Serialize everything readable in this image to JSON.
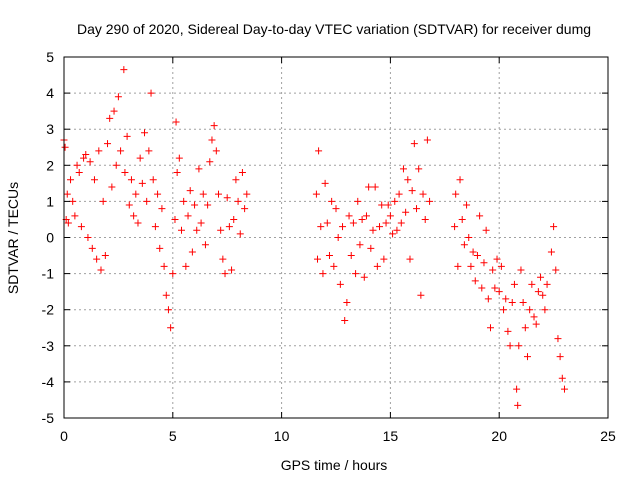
{
  "chart_data": {
    "type": "scatter",
    "title": "Day 290 of 2020, Sidereal Day-to-day VTEC variation (SDTVAR) for receiver dumg",
    "xlabel": "GPS time / hours",
    "ylabel": "SDTVAR / TECUs",
    "xlim": [
      0,
      25
    ],
    "ylim": [
      -5,
      5
    ],
    "xticks": [
      "0",
      "5",
      "10",
      "15",
      "20",
      "25"
    ],
    "yticks": [
      "-5",
      "-4",
      "-3",
      "-2",
      "-1",
      "0",
      "1",
      "2",
      "3",
      "4",
      "5"
    ],
    "grid": true,
    "marker": "+",
    "color": "#ff0000",
    "series": [
      {
        "name": "SDTVAR",
        "sample_note": "representative trace points (full data is dense)",
        "points": [
          [
            0.0,
            2.7
          ],
          [
            0.05,
            2.5
          ],
          [
            0.1,
            0.5
          ],
          [
            0.15,
            1.2
          ],
          [
            0.2,
            0.4
          ],
          [
            0.3,
            1.6
          ],
          [
            0.4,
            1.0
          ],
          [
            0.5,
            0.6
          ],
          [
            0.6,
            2.0
          ],
          [
            0.7,
            1.8
          ],
          [
            0.8,
            0.3
          ],
          [
            0.9,
            2.2
          ],
          [
            1.0,
            2.3
          ],
          [
            1.1,
            0.0
          ],
          [
            1.2,
            2.1
          ],
          [
            1.3,
            -0.3
          ],
          [
            1.4,
            1.6
          ],
          [
            1.5,
            -0.6
          ],
          [
            1.6,
            2.4
          ],
          [
            1.7,
            -0.9
          ],
          [
            1.8,
            1.0
          ],
          [
            1.9,
            -0.5
          ],
          [
            2.0,
            2.6
          ],
          [
            2.1,
            3.3
          ],
          [
            2.2,
            1.4
          ],
          [
            2.3,
            3.5
          ],
          [
            2.4,
            2.0
          ],
          [
            2.5,
            3.9
          ],
          [
            2.6,
            2.4
          ],
          [
            2.75,
            4.65
          ],
          [
            2.8,
            1.8
          ],
          [
            2.9,
            2.8
          ],
          [
            3.0,
            0.9
          ],
          [
            3.1,
            1.6
          ],
          [
            3.2,
            0.6
          ],
          [
            3.3,
            1.2
          ],
          [
            3.4,
            0.4
          ],
          [
            3.5,
            2.2
          ],
          [
            3.6,
            1.5
          ],
          [
            3.7,
            2.9
          ],
          [
            3.8,
            1.0
          ],
          [
            3.9,
            2.4
          ],
          [
            4.0,
            4.0
          ],
          [
            4.1,
            1.6
          ],
          [
            4.2,
            0.3
          ],
          [
            4.3,
            1.2
          ],
          [
            4.4,
            -0.3
          ],
          [
            4.5,
            0.8
          ],
          [
            4.6,
            -0.8
          ],
          [
            4.7,
            -1.6
          ],
          [
            4.8,
            -2.0
          ],
          [
            4.9,
            -2.5
          ],
          [
            5.0,
            -1.0
          ],
          [
            5.1,
            0.5
          ],
          [
            5.15,
            3.2
          ],
          [
            5.2,
            1.8
          ],
          [
            5.3,
            2.2
          ],
          [
            5.4,
            0.2
          ],
          [
            5.5,
            1.0
          ],
          [
            5.6,
            -0.8
          ],
          [
            5.7,
            0.6
          ],
          [
            5.8,
            1.3
          ],
          [
            5.9,
            -0.4
          ],
          [
            6.0,
            0.9
          ],
          [
            6.1,
            0.2
          ],
          [
            6.2,
            1.9
          ],
          [
            6.3,
            0.4
          ],
          [
            6.4,
            1.2
          ],
          [
            6.5,
            -0.2
          ],
          [
            6.6,
            0.9
          ],
          [
            6.7,
            2.1
          ],
          [
            6.8,
            2.7
          ],
          [
            6.9,
            3.1
          ],
          [
            7.0,
            2.4
          ],
          [
            7.1,
            1.2
          ],
          [
            7.2,
            0.2
          ],
          [
            7.3,
            -0.6
          ],
          [
            7.4,
            -1.0
          ],
          [
            7.5,
            1.1
          ],
          [
            7.6,
            0.3
          ],
          [
            7.7,
            -0.9
          ],
          [
            7.8,
            0.5
          ],
          [
            7.9,
            1.6
          ],
          [
            8.0,
            1.0
          ],
          [
            8.1,
            0.1
          ],
          [
            8.2,
            1.8
          ],
          [
            8.3,
            0.8
          ],
          [
            8.4,
            1.2
          ],
          [
            11.6,
            1.2
          ],
          [
            11.65,
            -0.6
          ],
          [
            11.7,
            2.4
          ],
          [
            11.8,
            0.3
          ],
          [
            11.9,
            -1.0
          ],
          [
            12.0,
            1.5
          ],
          [
            12.1,
            0.4
          ],
          [
            12.2,
            -0.5
          ],
          [
            12.3,
            1.0
          ],
          [
            12.4,
            -0.8
          ],
          [
            12.5,
            0.8
          ],
          [
            12.6,
            0.0
          ],
          [
            12.7,
            -1.3
          ],
          [
            12.8,
            0.3
          ],
          [
            12.9,
            -2.3
          ],
          [
            13.0,
            -1.8
          ],
          [
            13.1,
            0.6
          ],
          [
            13.2,
            -0.5
          ],
          [
            13.3,
            0.4
          ],
          [
            13.4,
            -1.0
          ],
          [
            13.5,
            1.0
          ],
          [
            13.6,
            -0.2
          ],
          [
            13.7,
            0.5
          ],
          [
            13.8,
            -1.1
          ],
          [
            13.9,
            0.6
          ],
          [
            14.0,
            1.4
          ],
          [
            14.1,
            -0.3
          ],
          [
            14.2,
            0.2
          ],
          [
            14.3,
            1.4
          ],
          [
            14.4,
            -0.8
          ],
          [
            14.5,
            0.3
          ],
          [
            14.6,
            0.9
          ],
          [
            14.7,
            -0.6
          ],
          [
            14.8,
            0.4
          ],
          [
            14.9,
            0.9
          ],
          [
            15.0,
            0.6
          ],
          [
            15.1,
            0.1
          ],
          [
            15.2,
            1.0
          ],
          [
            15.3,
            0.2
          ],
          [
            15.4,
            1.2
          ],
          [
            15.5,
            0.4
          ],
          [
            15.6,
            1.9
          ],
          [
            15.7,
            0.7
          ],
          [
            15.8,
            1.6
          ],
          [
            15.9,
            -0.6
          ],
          [
            16.0,
            1.3
          ],
          [
            16.1,
            2.6
          ],
          [
            16.2,
            0.8
          ],
          [
            16.3,
            1.9
          ],
          [
            16.4,
            -1.6
          ],
          [
            16.5,
            1.2
          ],
          [
            16.6,
            0.5
          ],
          [
            16.7,
            2.7
          ],
          [
            16.8,
            1.0
          ],
          [
            17.95,
            0.3
          ],
          [
            18.0,
            1.2
          ],
          [
            18.1,
            -0.8
          ],
          [
            18.2,
            1.6
          ],
          [
            18.3,
            0.5
          ],
          [
            18.4,
            -0.2
          ],
          [
            18.5,
            0.9
          ],
          [
            18.6,
            0.0
          ],
          [
            18.7,
            -0.8
          ],
          [
            18.8,
            -0.4
          ],
          [
            18.9,
            -1.2
          ],
          [
            19.0,
            -0.5
          ],
          [
            19.1,
            0.6
          ],
          [
            19.2,
            -1.4
          ],
          [
            19.3,
            -0.7
          ],
          [
            19.4,
            0.2
          ],
          [
            19.5,
            -1.7
          ],
          [
            19.6,
            -2.5
          ],
          [
            19.7,
            -0.9
          ],
          [
            19.8,
            -1.4
          ],
          [
            19.9,
            -0.6
          ],
          [
            20.0,
            -1.5
          ],
          [
            20.1,
            -0.8
          ],
          [
            20.2,
            -2.0
          ],
          [
            20.3,
            -1.7
          ],
          [
            20.4,
            -2.6
          ],
          [
            20.5,
            -3.0
          ],
          [
            20.6,
            -1.8
          ],
          [
            20.7,
            -1.3
          ],
          [
            20.8,
            -4.2
          ],
          [
            20.85,
            -4.65
          ],
          [
            20.9,
            -3.0
          ],
          [
            21.0,
            -0.9
          ],
          [
            21.1,
            -1.8
          ],
          [
            21.2,
            -2.5
          ],
          [
            21.3,
            -3.3
          ],
          [
            21.4,
            -2.0
          ],
          [
            21.5,
            -1.3
          ],
          [
            21.6,
            -2.2
          ],
          [
            21.7,
            -2.4
          ],
          [
            21.8,
            -1.5
          ],
          [
            21.9,
            -1.1
          ],
          [
            22.0,
            -1.6
          ],
          [
            22.1,
            -2.0
          ],
          [
            22.2,
            -1.3
          ],
          [
            22.4,
            -0.4
          ],
          [
            22.5,
            0.3
          ],
          [
            22.6,
            -0.9
          ],
          [
            22.7,
            -2.8
          ],
          [
            22.8,
            -3.3
          ],
          [
            22.9,
            -3.9
          ],
          [
            23.0,
            -4.2
          ]
        ]
      }
    ]
  }
}
